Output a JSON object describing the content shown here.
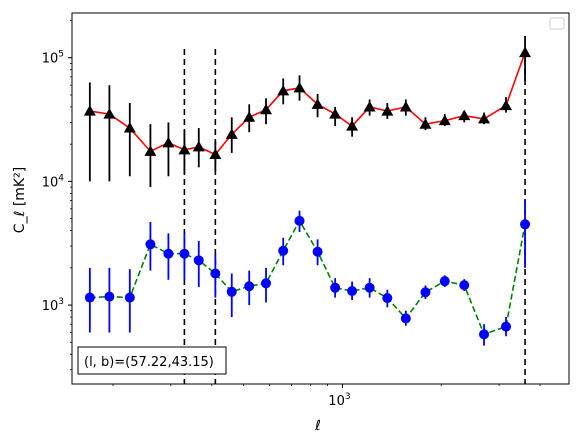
{
  "chart_data": {
    "type": "line",
    "xlabel": "ℓ",
    "ylabel": "C_ℓ  [mK²]",
    "x_scale": "log",
    "y_scale": "log",
    "xlim": [
      150,
      4900
    ],
    "ylim": [
      230,
      230000
    ],
    "x_major_ticks": [
      {
        "value": 1000,
        "label": "10",
        "exp": "3"
      }
    ],
    "y_major_ticks": [
      {
        "value": 1000,
        "label": "10",
        "exp": "3"
      },
      {
        "value": 10000,
        "label": "10",
        "exp": "4"
      },
      {
        "value": 100000,
        "label": "10",
        "exp": "5"
      }
    ],
    "vertical_lines": [
      330,
      410,
      3600
    ],
    "annotation": "(l, b)=(57.22,43.15)",
    "legend_placement": "upper-right",
    "grid": false,
    "series": [
      {
        "color": "#ff0000",
        "line_style": "solid",
        "marker": "triangle",
        "marker_color": "#000000",
        "error_color": "#000000",
        "points": [
          {
            "x": 170,
            "y": 37000,
            "lo": 10000,
            "hi": 63000
          },
          {
            "x": 195,
            "y": 35000,
            "lo": 10000,
            "hi": 60000
          },
          {
            "x": 225,
            "y": 27000,
            "lo": 11000,
            "hi": 43000
          },
          {
            "x": 260,
            "y": 17500,
            "lo": 9000,
            "hi": 29000
          },
          {
            "x": 295,
            "y": 20500,
            "lo": 11000,
            "hi": 30000
          },
          {
            "x": 330,
            "y": 18000,
            "lo": 11500,
            "hi": 26000
          },
          {
            "x": 365,
            "y": 19000,
            "lo": 13000,
            "hi": 27000
          },
          {
            "x": 410,
            "y": 16500,
            "lo": 12000,
            "hi": 21000
          },
          {
            "x": 460,
            "y": 24000,
            "lo": 17000,
            "hi": 33000
          },
          {
            "x": 520,
            "y": 33000,
            "lo": 25000,
            "hi": 42000
          },
          {
            "x": 585,
            "y": 38000,
            "lo": 29000,
            "hi": 47000
          },
          {
            "x": 660,
            "y": 54000,
            "lo": 42000,
            "hi": 68000
          },
          {
            "x": 740,
            "y": 57000,
            "lo": 45000,
            "hi": 72000
          },
          {
            "x": 840,
            "y": 42000,
            "lo": 33000,
            "hi": 51000
          },
          {
            "x": 950,
            "y": 35000,
            "lo": 28000,
            "hi": 40000
          },
          {
            "x": 1070,
            "y": 28000,
            "lo": 23000,
            "hi": 33000
          },
          {
            "x": 1210,
            "y": 40000,
            "lo": 34000,
            "hi": 46000
          },
          {
            "x": 1370,
            "y": 37000,
            "lo": 32000,
            "hi": 43000
          },
          {
            "x": 1560,
            "y": 40000,
            "lo": 34000,
            "hi": 46000
          },
          {
            "x": 1790,
            "y": 29000,
            "lo": 26000,
            "hi": 33000
          },
          {
            "x": 2050,
            "y": 31000,
            "lo": 28000,
            "hi": 35000
          },
          {
            "x": 2350,
            "y": 34000,
            "lo": 30000,
            "hi": 37000
          },
          {
            "x": 2700,
            "y": 32000,
            "lo": 29000,
            "hi": 36000
          },
          {
            "x": 3150,
            "y": 41000,
            "lo": 36000,
            "hi": 48000
          },
          {
            "x": 3600,
            "y": 110000,
            "lo": 65000,
            "hi": 150000
          }
        ]
      },
      {
        "color": "#008000",
        "line_style": "dashed",
        "marker": "circle",
        "marker_color": "#0000ff",
        "error_color": "#0000ff",
        "points": [
          {
            "x": 170,
            "y": 1150,
            "lo": 600,
            "hi": 2000
          },
          {
            "x": 195,
            "y": 1170,
            "lo": 600,
            "hi": 2000
          },
          {
            "x": 225,
            "y": 1150,
            "lo": 600,
            "hi": 1950
          },
          {
            "x": 260,
            "y": 3100,
            "lo": 1900,
            "hi": 4700
          },
          {
            "x": 295,
            "y": 2600,
            "lo": 1600,
            "hi": 3800
          },
          {
            "x": 330,
            "y": 2600,
            "lo": 1600,
            "hi": 3800
          },
          {
            "x": 365,
            "y": 2300,
            "lo": 1400,
            "hi": 3300
          },
          {
            "x": 410,
            "y": 1800,
            "lo": 1150,
            "hi": 2600
          },
          {
            "x": 460,
            "y": 1280,
            "lo": 800,
            "hi": 1800
          },
          {
            "x": 520,
            "y": 1420,
            "lo": 1000,
            "hi": 1900
          },
          {
            "x": 585,
            "y": 1500,
            "lo": 1050,
            "hi": 2000
          },
          {
            "x": 660,
            "y": 2750,
            "lo": 2100,
            "hi": 3500
          },
          {
            "x": 740,
            "y": 4800,
            "lo": 3900,
            "hi": 5800
          },
          {
            "x": 840,
            "y": 2700,
            "lo": 2100,
            "hi": 3400
          },
          {
            "x": 950,
            "y": 1380,
            "lo": 1150,
            "hi": 1650
          },
          {
            "x": 1070,
            "y": 1300,
            "lo": 1100,
            "hi": 1550
          },
          {
            "x": 1210,
            "y": 1380,
            "lo": 1150,
            "hi": 1650
          },
          {
            "x": 1370,
            "y": 1140,
            "lo": 960,
            "hi": 1330
          },
          {
            "x": 1560,
            "y": 780,
            "lo": 680,
            "hi": 900
          },
          {
            "x": 1790,
            "y": 1270,
            "lo": 1120,
            "hi": 1440
          },
          {
            "x": 2050,
            "y": 1560,
            "lo": 1400,
            "hi": 1740
          },
          {
            "x": 2350,
            "y": 1450,
            "lo": 1300,
            "hi": 1620
          },
          {
            "x": 2700,
            "y": 580,
            "lo": 470,
            "hi": 700
          },
          {
            "x": 3150,
            "y": 670,
            "lo": 560,
            "hi": 800
          },
          {
            "x": 3600,
            "y": 4500,
            "lo": 2000,
            "hi": 7100
          }
        ]
      }
    ]
  }
}
